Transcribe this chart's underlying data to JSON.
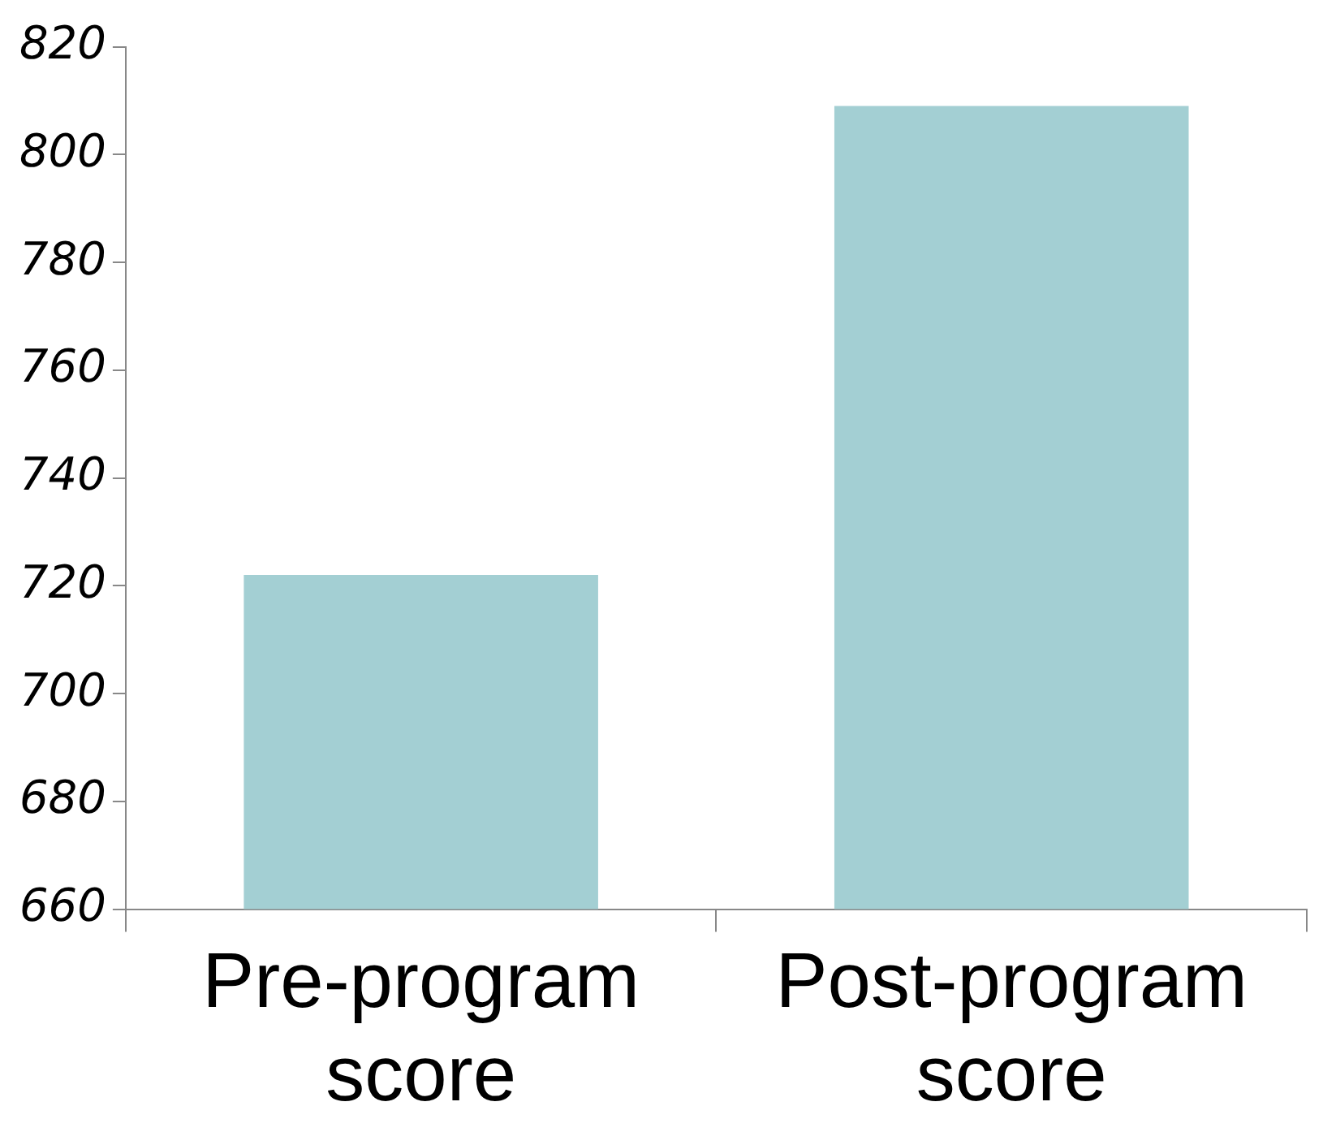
{
  "chart_data": {
    "type": "bar",
    "categories": [
      "Pre-program score",
      "Post-program score"
    ],
    "values": [
      722,
      809
    ],
    "color": "#a3cfd3",
    "ylim": [
      660,
      820
    ],
    "yticks": [
      660,
      680,
      700,
      720,
      740,
      760,
      780,
      800,
      820
    ],
    "grid": false,
    "legend": false
  }
}
